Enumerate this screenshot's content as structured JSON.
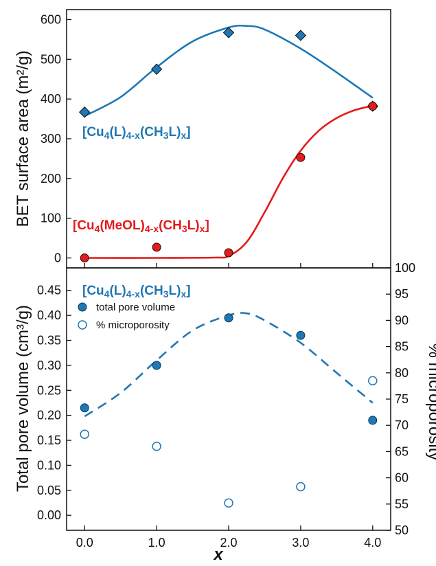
{
  "chart_data": [
    {
      "type": "scatter",
      "panel": "top",
      "ylabel": "BET surface area (m²/g)",
      "xlim": [
        -0.25,
        4.25
      ],
      "ylim": [
        -25,
        625
      ],
      "yticks": [
        0,
        100,
        200,
        300,
        400,
        500,
        600
      ],
      "grid": false,
      "series": [
        {
          "label_parts": [
            {
              "t": "[Cu",
              "s": ""
            },
            {
              "t": "4",
              "s": "sub"
            },
            {
              "t": "(L)",
              "s": ""
            },
            {
              "t": "4-x",
              "s": "sub"
            },
            {
              "t": "(CH",
              "s": ""
            },
            {
              "t": "3",
              "s": "sub"
            },
            {
              "t": "L)",
              "s": ""
            },
            {
              "t": "x",
              "s": "sub"
            },
            {
              "t": "]",
              "s": ""
            }
          ],
          "color": "#1f77b4",
          "marker": "diamond",
          "x": [
            0,
            1,
            2,
            3,
            4
          ],
          "y": [
            367,
            475,
            567,
            560,
            382
          ],
          "fit_curve": {
            "style": "solid",
            "x": [
              0,
              0.5,
              1,
              1.5,
              2,
              2.25,
              2.5,
              3,
              3.5,
              4
            ],
            "y": [
              357,
              405,
              480,
              545,
              580,
              584,
              575,
              527,
              467,
              403
            ]
          }
        },
        {
          "label_parts": [
            {
              "t": "[Cu",
              "s": ""
            },
            {
              "t": "4",
              "s": "sub"
            },
            {
              "t": "(MeOL)",
              "s": ""
            },
            {
              "t": "4-x",
              "s": "sub"
            },
            {
              "t": "(CH",
              "s": ""
            },
            {
              "t": "3",
              "s": "sub"
            },
            {
              "t": "L)",
              "s": ""
            },
            {
              "t": "x",
              "s": "sub"
            },
            {
              "t": "]",
              "s": ""
            }
          ],
          "color": "#e41a1c",
          "marker": "circle",
          "x": [
            0,
            1,
            2,
            3,
            4
          ],
          "y": [
            0,
            27,
            13,
            253,
            382
          ],
          "fit_curve": {
            "style": "solid",
            "x": [
              0,
              1,
              1.8,
              2,
              2.25,
              2.5,
              2.75,
              3,
              3.25,
              3.5,
              3.75,
              4
            ],
            "y": [
              0,
              0,
              1,
              5,
              40,
              115,
              200,
              270,
              320,
              352,
              372,
              383
            ]
          }
        }
      ]
    },
    {
      "type": "scatter",
      "panel": "bottom",
      "xlabel": "x",
      "ylabel": "Total pore volume (cm³/g)",
      "ylabel_right": "% microporosity",
      "xlim": [
        -0.25,
        4.25
      ],
      "xticks": [
        "0.0",
        "1.0",
        "2.0",
        "3.0",
        "4.0"
      ],
      "ylim": [
        -0.03,
        0.495
      ],
      "yticks": [
        "0.00",
        "0.05",
        "0.10",
        "0.15",
        "0.20",
        "0.25",
        "0.30",
        "0.35",
        "0.40",
        "0.45"
      ],
      "ylim_right": [
        50,
        100
      ],
      "yticks_right": [
        50,
        55,
        60,
        65,
        70,
        75,
        80,
        85,
        90,
        95,
        100
      ],
      "grid": false,
      "legend_location": "top-left",
      "title_parts": [
        {
          "t": "[Cu",
          "s": ""
        },
        {
          "t": "4",
          "s": "sub"
        },
        {
          "t": "(L)",
          "s": ""
        },
        {
          "t": "4-x",
          "s": "sub"
        },
        {
          "t": "(CH",
          "s": ""
        },
        {
          "t": "3",
          "s": "sub"
        },
        {
          "t": "L)",
          "s": ""
        },
        {
          "t": "x",
          "s": "sub"
        },
        {
          "t": "]",
          "s": ""
        }
      ],
      "series": [
        {
          "name": "total pore volume",
          "axis": "left",
          "color": "#1f77b4",
          "marker": "filled-circle",
          "x": [
            0,
            1,
            2,
            3,
            4
          ],
          "y": [
            0.215,
            0.3,
            0.395,
            0.36,
            0.19
          ],
          "fit_curve": {
            "style": "dashed",
            "x": [
              0,
              0.5,
              1,
              1.5,
              2,
              2.25,
              2.5,
              3,
              3.5,
              4
            ],
            "y": [
              0.198,
              0.245,
              0.31,
              0.37,
              0.4,
              0.404,
              0.39,
              0.345,
              0.285,
              0.225
            ]
          }
        },
        {
          "name": "% microporosity",
          "axis": "right",
          "color": "#1f77b4",
          "marker": "open-circle",
          "x": [
            0,
            1,
            2,
            3,
            4
          ],
          "y": [
            68.3,
            66.0,
            55.2,
            58.3,
            78.5
          ]
        }
      ]
    }
  ]
}
